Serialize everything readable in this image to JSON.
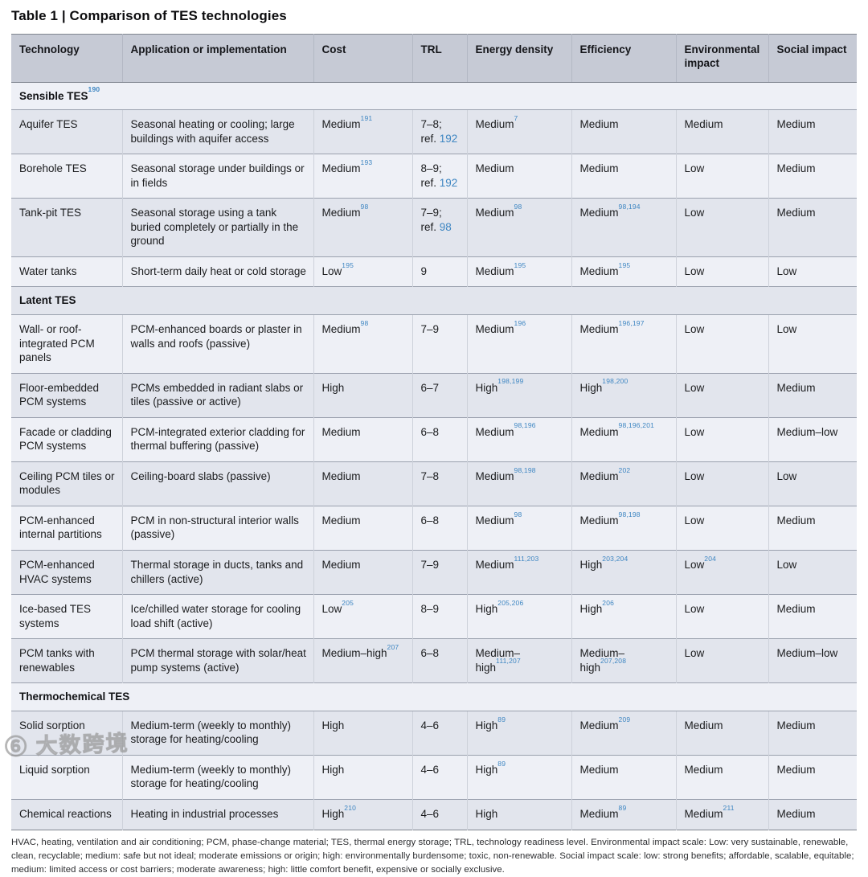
{
  "title": "Table 1 | Comparison of TES technologies",
  "table": {
    "columns": [
      "Technology",
      "Application or implementation",
      "Cost",
      "TRL",
      "Energy density",
      "Efficiency",
      "Environmental impact",
      "Social impact"
    ],
    "sections": [
      {
        "name": "Sensible TES^190^",
        "rows": [
          [
            "Aquifer TES",
            "Seasonal heating or cooling; large buildings with aquifer access",
            "Medium^191^",
            "7–8;\nref. [192]",
            "Medium^7^",
            "Medium",
            "Medium",
            "Medium"
          ],
          [
            "Borehole TES",
            "Seasonal storage under buildings or in fields",
            "Medium^193^",
            "8–9;\nref. [192]",
            "Medium",
            "Medium",
            "Low",
            "Medium"
          ],
          [
            "Tank-pit TES",
            "Seasonal storage using a tank buried completely or partially in the ground",
            "Medium^98^",
            "7–9;\nref. [98]",
            "Medium^98^",
            "Medium^98,194^",
            "Low",
            "Medium"
          ],
          [
            "Water tanks",
            "Short-term daily heat or cold storage",
            "Low^195^",
            "9",
            "Medium^195^",
            "Medium^195^",
            "Low",
            "Low"
          ]
        ]
      },
      {
        "name": "Latent TES",
        "rows": [
          [
            "Wall- or roof-integrated PCM panels",
            "PCM-enhanced boards or plaster in walls and roofs (passive)",
            "Medium^98^",
            "7–9",
            "Medium^196^",
            "Medium^196,197^",
            "Low",
            "Low"
          ],
          [
            "Floor-embedded PCM systems",
            "PCMs embedded in radiant slabs or tiles (passive or active)",
            "High",
            "6–7",
            "High^198,199^",
            "High^198,200^",
            "Low",
            "Medium"
          ],
          [
            "Facade or cladding PCM systems",
            "PCM-integrated exterior cladding for thermal buffering (passive)",
            "Medium",
            "6–8",
            "Medium^98,196^",
            "Medium^98,196,201^",
            "Low",
            "Medium–low"
          ],
          [
            "Ceiling PCM tiles or modules",
            "Ceiling-board slabs (passive)",
            "Medium",
            "7–8",
            "Medium^98,198^",
            "Medium^202^",
            "Low",
            "Low"
          ],
          [
            "PCM-enhanced internal partitions",
            "PCM in non-structural interior walls (passive)",
            "Medium",
            "6–8",
            "Medium^98^",
            "Medium^98,198^",
            "Low",
            "Medium"
          ],
          [
            "PCM-enhanced HVAC systems",
            "Thermal storage in ducts, tanks and chillers (active)",
            "Medium",
            "7–9",
            "Medium^111,203^",
            "High^203,204^",
            "Low^204^",
            "Low"
          ],
          [
            "Ice-based TES systems",
            "Ice/chilled water storage for cooling load shift (active)",
            "Low^205^",
            "8–9",
            "High^205,206^",
            "High^206^",
            "Low",
            "Medium"
          ],
          [
            "PCM tanks with renewables",
            "PCM thermal storage with solar/heat pump systems (active)",
            "Medium–high^207^",
            "6–8",
            "Medium–high^111,207^",
            "Medium–high^207,208^",
            "Low",
            "Medium–low"
          ]
        ]
      },
      {
        "name": "Thermochemical TES",
        "rows": [
          [
            "Solid sorption",
            "Medium-term (weekly to monthly) storage for heating/cooling",
            "High",
            "4–6",
            "High^89^",
            "Medium^209^",
            "Medium",
            "Medium"
          ],
          [
            "Liquid sorption",
            "Medium-term (weekly to monthly) storage for heating/cooling",
            "High",
            "4–6",
            "High^89^",
            "Medium",
            "Medium",
            "Medium"
          ],
          [
            "Chemical reactions",
            "Heating in industrial processes",
            "High^210^",
            "4–6",
            "High",
            "Medium^89^",
            "Medium^211^",
            "Medium"
          ]
        ]
      }
    ]
  },
  "footnote": "HVAC, heating, ventilation and air conditioning; PCM, phase-change material; TES, thermal energy storage; TRL, technology readiness level. Environmental impact scale: Low: very sustainable, renewable, clean, recyclable; medium: safe but not ideal; moderate emissions or origin; high: environmentally burdensome; toxic, non-renewable. Social impact scale: low: strong benefits; affordable, scalable, equitable; medium: limited access or cost barriers; moderate awareness; high: little comfort benefit, expensive or socially exclusive.",
  "watermark": "⑥ 大数跨境",
  "colors": {
    "header_bg": "#c6cad5",
    "row_light": "#eef0f6",
    "row_dark": "#e2e5ed",
    "citation_blue": "#3e86c2",
    "rule": "#9ba1ae"
  }
}
